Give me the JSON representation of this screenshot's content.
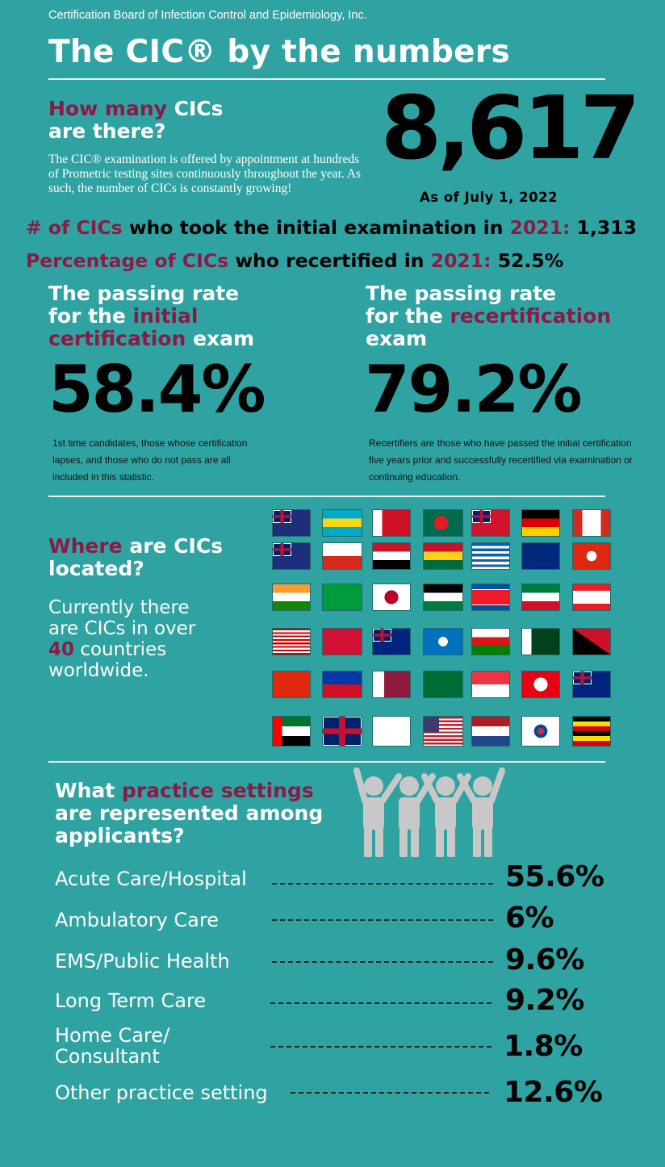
{
  "header": {
    "org": "Certification Board of Infection Control and Epidemiology, Inc.",
    "title": "The CIC® by the numbers"
  },
  "count": {
    "q_part1": "How many",
    "q_part2": "CICs",
    "q_part3": "are there?",
    "desc": "The CIC® examination is offered by appointment at hundreds of Prometric testing sites continuously throughout the year. As such, the number of CICs is constantly growing!",
    "number": "8,617",
    "asof": "As of July 1, 2022"
  },
  "stat1": {
    "p1": "# of CICs",
    "p2": "who took the initial examination in",
    "year": "2021:",
    "value": "1,313"
  },
  "stat2": {
    "p1": "Percentage of CICs",
    "p2": "who recertified in",
    "year": "2021:",
    "value": "52.5%"
  },
  "initial": {
    "l1": "The passing rate",
    "l2a": "for the",
    "l2b": "initial",
    "l3a": "certification",
    "l3b": "exam",
    "rate": "58.4%",
    "note": "1st time candidates, those whose certification lapses, and those who do not pass are all included in this statistic."
  },
  "recert": {
    "l1": "The passing rate",
    "l2a": "for the",
    "l2b": "recertification",
    "l3": "exam",
    "rate": "79.2%",
    "note": "Recertifiers are those who have passed the initial certification five years prior and successfully recertified via examination or continuing education."
  },
  "location": {
    "h_maroon": "Where",
    "h_rest1": "are CICs",
    "h_rest2": "located?",
    "body1": "Currently there",
    "body2": "are CICs in over",
    "count": "40",
    "body3": "countries",
    "body4": "worldwide."
  },
  "flags": [
    "australia-flag",
    "bahamas-flag",
    "bahrain-flag",
    "bangladesh-flag",
    "bermuda-flag",
    "germany-flag",
    "canada-flag",
    "cayman-islands-flag",
    "chile-flag",
    "egypt-flag",
    "ghana-flag",
    "greece-flag",
    "guam-flag",
    "hong-kong-flag",
    "india-flag",
    "jamaica-flag",
    "japan-flag",
    "jordan-flag",
    "north-korea-flag",
    "kuwait-flag",
    "lebanon-flag",
    "malaysia-flag",
    "maldives-flag",
    "new-zealand-flag",
    "northern-mariana-islands-flag",
    "oman-flag",
    "pakistan-flag",
    "papua-new-guinea-flag",
    "china-flag",
    "philippines-flag",
    "qatar-flag",
    "saudi-arabia-flag",
    "singapore-flag",
    "tunisia-flag",
    "turks-and-caicos-flag",
    "uae-flag",
    "united-kingdom-flag",
    "us-virgin-islands-flag",
    "united-states-flag",
    "netherlands-flag",
    "south-korea-flag",
    "uganda-flag"
  ],
  "settings": {
    "q_part1": "What",
    "q_maroon": "practice settings",
    "q_line2": "are represented among",
    "q_line3": "applicants?",
    "rows": [
      {
        "label": "Acute Care/Hospital",
        "value": "55.6%"
      },
      {
        "label": "Ambulatory Care",
        "value": "6%"
      },
      {
        "label": "EMS/Public Health",
        "value": "9.6%"
      },
      {
        "label": "Long Term Care",
        "value": "9.2%"
      },
      {
        "label": "Home Care/",
        "label2": "Consultant",
        "value": "1.8%"
      },
      {
        "label": "Other practice setting",
        "value": "12.6%"
      }
    ]
  },
  "colors": {
    "background": "#2fa3a2",
    "accent": "#8b1a45",
    "text": "#ffffff",
    "number": "#000000"
  }
}
